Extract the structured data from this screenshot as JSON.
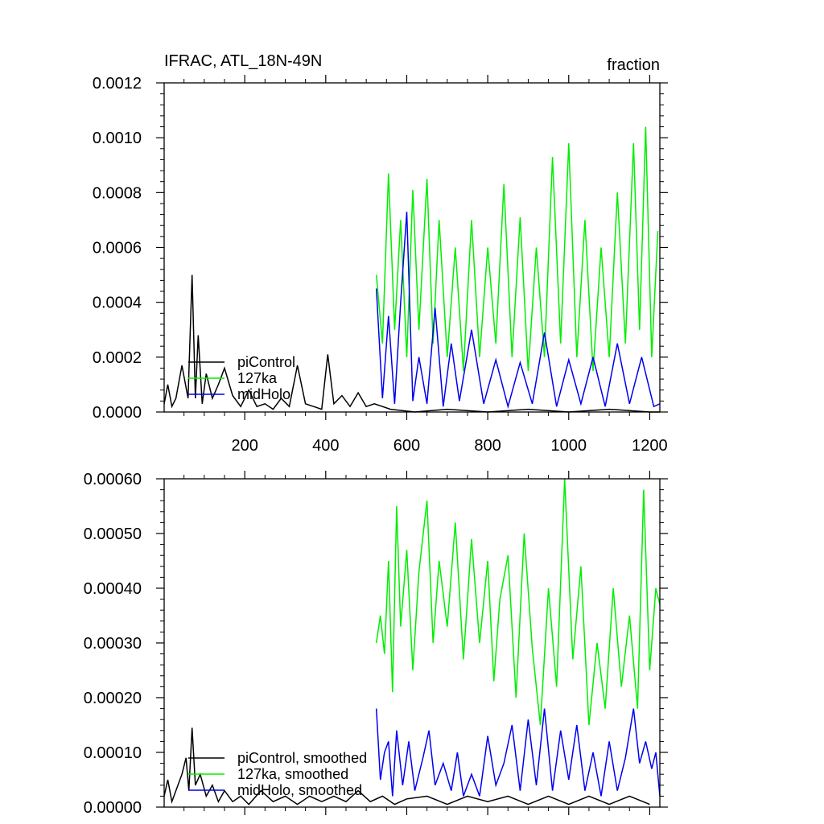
{
  "chart_data": [
    {
      "type": "line",
      "title": "IFRAC, ATL_18N-49N",
      "units": "fraction",
      "xlim": [
        1,
        1225
      ],
      "ylim": [
        0,
        0.0012
      ],
      "xticks": [
        200,
        400,
        600,
        800,
        1000,
        1200
      ],
      "xtick_labels": [
        "200",
        "400",
        "600",
        "800",
        "1000",
        "1200"
      ],
      "yticks": [
        0,
        0.0002,
        0.0004,
        0.0006,
        0.0008,
        0.001,
        0.0012
      ],
      "ytick_labels": [
        "0.0000",
        "0.0002",
        "0.0004",
        "0.0006",
        "0.0008",
        "0.0010",
        "0.0012"
      ],
      "grid": false,
      "legend": "bottom-left",
      "series": [
        {
          "name": "piControl",
          "color": "#000000",
          "x": [
            1,
            10,
            20,
            30,
            45,
            60,
            70,
            78,
            85,
            95,
            105,
            120,
            135,
            150,
            170,
            190,
            210,
            230,
            250,
            270,
            290,
            310,
            330,
            350,
            370,
            390,
            405,
            420,
            440,
            460,
            480,
            500,
            520,
            560,
            620,
            700,
            800,
            900,
            1000,
            1100,
            1200,
            1225
          ],
          "y": [
            3e-05,
            0.0001,
            2e-05,
            5e-05,
            0.00017,
            5e-05,
            0.0005,
            5e-05,
            0.00028,
            3e-05,
            0.00014,
            5e-05,
            0.0001,
            0.00016,
            6e-05,
            2e-05,
            8e-05,
            2e-05,
            3e-05,
            1e-05,
            5e-05,
            2e-05,
            0.00017,
            3e-05,
            2e-05,
            1e-05,
            0.00021,
            3e-05,
            6e-05,
            2e-05,
            7e-05,
            2e-05,
            3e-05,
            1e-05,
            0.0,
            1e-05,
            0.0,
            1e-05,
            0.0,
            1e-05,
            0.0,
            0.0
          ]
        },
        {
          "name": "127ka",
          "color": "#00ee00",
          "x": [
            525,
            540,
            555,
            570,
            585,
            600,
            615,
            630,
            650,
            665,
            680,
            700,
            720,
            740,
            760,
            780,
            800,
            820,
            840,
            860,
            880,
            900,
            920,
            940,
            960,
            980,
            1000,
            1020,
            1040,
            1060,
            1080,
            1100,
            1120,
            1140,
            1160,
            1175,
            1190,
            1205,
            1220
          ],
          "y": [
            0.0005,
            0.00025,
            0.00087,
            0.0003,
            0.0007,
            0.0002,
            0.00081,
            0.0003,
            0.00085,
            0.00025,
            0.0007,
            0.0002,
            0.0006,
            0.00015,
            0.0007,
            0.0002,
            0.0006,
            0.00025,
            0.00083,
            0.0002,
            0.00071,
            0.00015,
            0.0006,
            0.0002,
            0.00093,
            0.00025,
            0.00098,
            0.0002,
            0.0007,
            0.00015,
            0.0006,
            0.0002,
            0.0008,
            0.00025,
            0.00098,
            0.0003,
            0.00104,
            0.0002,
            0.00066
          ]
        },
        {
          "name": "midHolo",
          "color": "#0000ee",
          "x": [
            525,
            540,
            555,
            570,
            585,
            600,
            615,
            630,
            650,
            670,
            690,
            710,
            730,
            760,
            790,
            820,
            850,
            880,
            910,
            940,
            970,
            1000,
            1030,
            1060,
            1090,
            1120,
            1150,
            1180,
            1210,
            1225
          ],
          "y": [
            0.00045,
            5e-05,
            0.00035,
            3e-05,
            0.0004,
            0.00073,
            4e-05,
            0.0002,
            3e-05,
            0.00038,
            2e-05,
            0.00025,
            4e-05,
            0.0003,
            3e-05,
            0.00019,
            2e-05,
            0.00018,
            3e-05,
            0.00029,
            2e-05,
            0.00019,
            3e-05,
            0.0002,
            2e-05,
            0.00025,
            3e-05,
            0.0002,
            2e-05,
            3e-05
          ]
        }
      ]
    },
    {
      "type": "line",
      "xlim": [
        1,
        1225
      ],
      "ylim": [
        0,
        0.0006
      ],
      "yticks": [
        0,
        0.0001,
        0.0002,
        0.0003,
        0.0004,
        0.0005,
        0.0006
      ],
      "ytick_labels": [
        "0.00000",
        "0.00010",
        "0.00020",
        "0.00030",
        "0.00040",
        "0.00050",
        "0.00060"
      ],
      "grid": false,
      "legend": "bottom-left",
      "series": [
        {
          "name": "piControl, smoothed",
          "color": "#000000",
          "x": [
            1,
            10,
            20,
            30,
            45,
            55,
            62,
            70,
            78,
            90,
            105,
            120,
            135,
            150,
            170,
            190,
            210,
            240,
            270,
            300,
            330,
            360,
            390,
            420,
            450,
            480,
            510,
            540,
            570,
            600,
            650,
            700,
            750,
            800,
            850,
            900,
            950,
            1000,
            1050,
            1100,
            1150,
            1200
          ],
          "y": [
            2e-05,
            5e-05,
            1e-05,
            3e-05,
            6e-05,
            9e-05,
            3e-05,
            0.000145,
            4e-05,
            6e-05,
            2e-05,
            4e-05,
            1e-05,
            3e-05,
            1e-05,
            2e-05,
            5e-06,
            3e-05,
            1e-05,
            2e-05,
            5e-06,
            2e-05,
            1e-05,
            2e-05,
            1e-05,
            3e-05,
            1e-05,
            2e-05,
            5e-06,
            1.5e-05,
            2e-05,
            5e-06,
            2e-05,
            1e-05,
            2e-05,
            5e-06,
            2e-05,
            5e-06,
            2e-05,
            5e-06,
            2e-05,
            5e-06
          ]
        },
        {
          "name": "127ka, smoothed",
          "color": "#00ee00",
          "x": [
            525,
            535,
            545,
            555,
            565,
            575,
            585,
            600,
            615,
            630,
            650,
            665,
            680,
            700,
            720,
            740,
            760,
            780,
            800,
            815,
            830,
            850,
            870,
            890,
            910,
            930,
            950,
            970,
            990,
            1010,
            1030,
            1050,
            1070,
            1090,
            1110,
            1130,
            1150,
            1170,
            1185,
            1200,
            1215,
            1225
          ],
          "y": [
            0.0003,
            0.00035,
            0.00028,
            0.00045,
            0.00021,
            0.00055,
            0.00033,
            0.00047,
            0.00025,
            0.00043,
            0.00056,
            0.0003,
            0.00045,
            0.00033,
            0.00052,
            0.00027,
            0.00049,
            0.0003,
            0.00045,
            0.00023,
            0.00038,
            0.00046,
            0.0002,
            0.0005,
            0.00029,
            0.00015,
            0.0004,
            0.00022,
            0.0006,
            0.00027,
            0.00044,
            0.00015,
            0.0003,
            0.00018,
            0.0004,
            0.00022,
            0.00035,
            0.00018,
            0.00058,
            0.00025,
            0.0004,
            0.00037
          ]
        },
        {
          "name": "midHolo, smoothed",
          "color": "#0000ee",
          "x": [
            525,
            535,
            545,
            555,
            565,
            575,
            590,
            605,
            620,
            640,
            655,
            670,
            690,
            710,
            725,
            740,
            760,
            780,
            800,
            820,
            840,
            860,
            880,
            900,
            920,
            940,
            960,
            980,
            1000,
            1020,
            1040,
            1060,
            1080,
            1100,
            1120,
            1140,
            1160,
            1175,
            1190,
            1205,
            1215,
            1225
          ],
          "y": [
            0.00018,
            5e-05,
            0.0001,
            0.00012,
            2e-05,
            0.00014,
            4e-05,
            0.00012,
            3e-05,
            9e-05,
            0.00014,
            4e-05,
            8e-05,
            3e-05,
            0.0001,
            2e-05,
            6e-05,
            2e-05,
            0.00013,
            4e-05,
            8e-05,
            0.00015,
            3e-05,
            0.00016,
            4e-05,
            0.00018,
            3e-05,
            0.00014,
            5e-05,
            0.00015,
            3e-05,
            0.0001,
            2e-05,
            0.00012,
            3e-05,
            9e-05,
            0.00018,
            8e-05,
            0.00012,
            7e-05,
            0.0001,
            2e-05
          ]
        }
      ]
    }
  ]
}
